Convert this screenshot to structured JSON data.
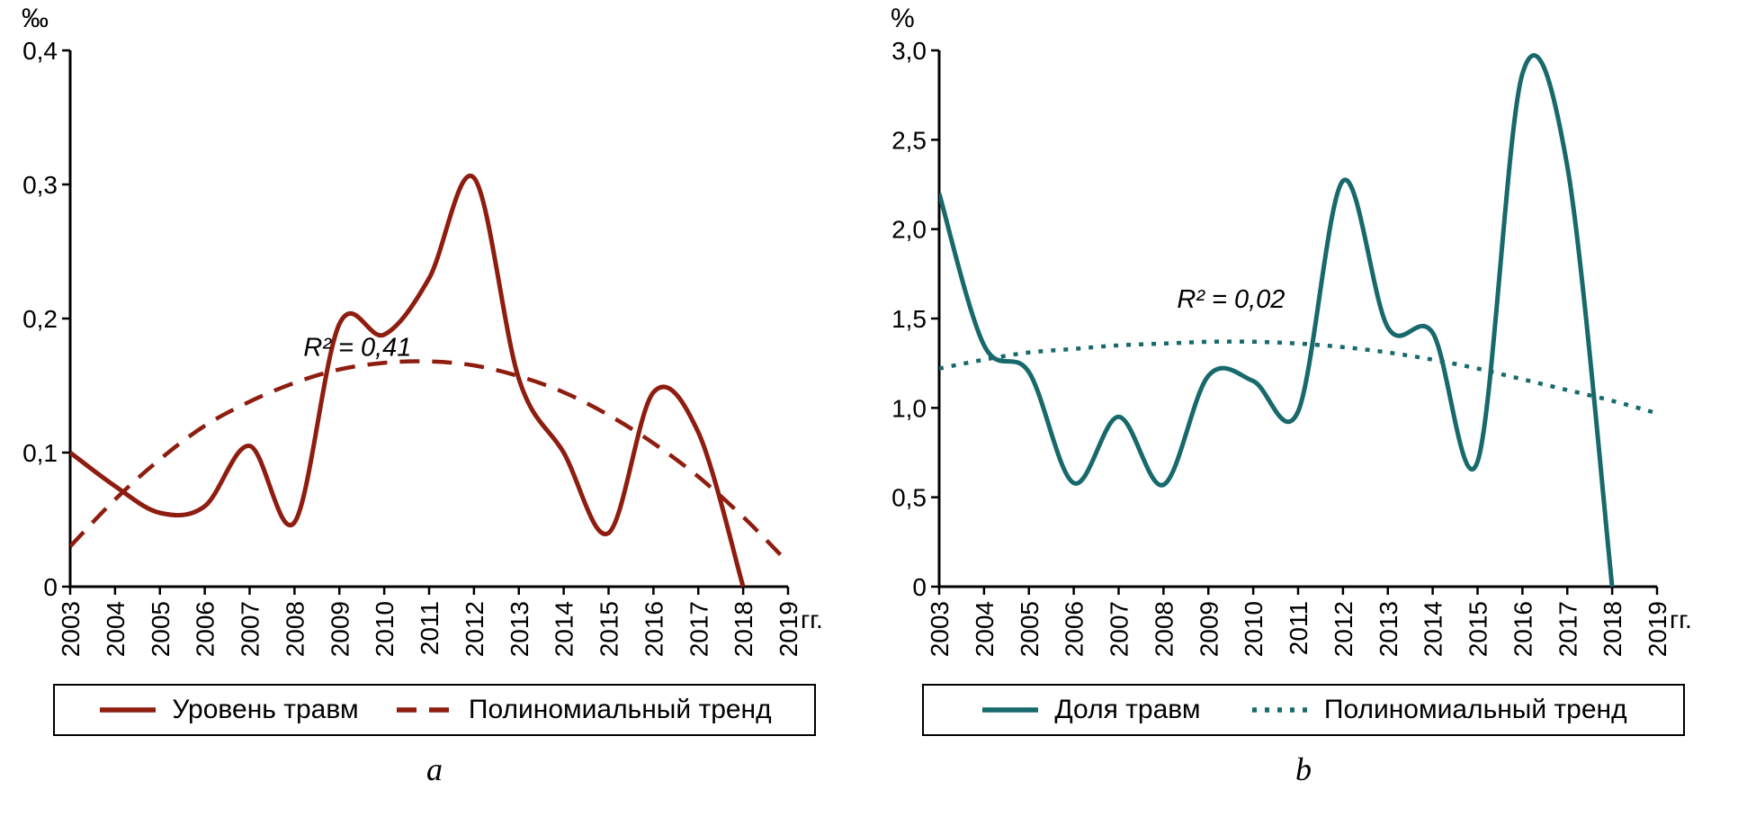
{
  "chart_data": [
    {
      "type": "line",
      "caption": "a",
      "unit": "‰",
      "x_suffix": "гг.",
      "color": "#8e1d10",
      "ylim": [
        0,
        0.4
      ],
      "yticks": [
        {
          "v": 0,
          "label": "0"
        },
        {
          "v": 0.1,
          "label": "0,1"
        },
        {
          "v": 0.2,
          "label": "0,2"
        },
        {
          "v": 0.3,
          "label": "0,3"
        },
        {
          "v": 0.4,
          "label": "0,4"
        }
      ],
      "x": [
        2003,
        2004,
        2005,
        2006,
        2007,
        2008,
        2009,
        2010,
        2011,
        2012,
        2013,
        2014,
        2015,
        2016,
        2017,
        2018,
        2019
      ],
      "r2": {
        "text": "R² = 0,41",
        "x": 2008.2,
        "y": 0.172
      },
      "series": [
        {
          "name": "Уровень травм",
          "dash": "none",
          "width": 5,
          "values": [
            0.1,
            0.075,
            0.055,
            0.06,
            0.105,
            0.048,
            0.196,
            0.188,
            0.23,
            0.305,
            0.155,
            0.1,
            0.04,
            0.145,
            0.115,
            0.0,
            null
          ]
        },
        {
          "name": "Полиномиальный тренд",
          "dash": "22 14",
          "width": 4.5,
          "values": [
            0.03,
            0.065,
            0.095,
            0.12,
            0.138,
            0.152,
            0.162,
            0.167,
            0.168,
            0.165,
            0.157,
            0.145,
            0.128,
            0.107,
            0.082,
            0.052,
            0.018
          ]
        }
      ]
    },
    {
      "type": "line",
      "caption": "b",
      "unit": "%",
      "x_suffix": "гг.",
      "color": "#17696c",
      "ylim": [
        0,
        3.0
      ],
      "yticks": [
        {
          "v": 0,
          "label": "0"
        },
        {
          "v": 0.5,
          "label": "0,5"
        },
        {
          "v": 1.0,
          "label": "1,0"
        },
        {
          "v": 1.5,
          "label": "1,5"
        },
        {
          "v": 2.0,
          "label": "2,0"
        },
        {
          "v": 2.5,
          "label": "2,5"
        },
        {
          "v": 3.0,
          "label": "3,0"
        }
      ],
      "x": [
        2003,
        2004,
        2005,
        2006,
        2007,
        2008,
        2009,
        2010,
        2011,
        2012,
        2013,
        2014,
        2015,
        2016,
        2017,
        2018,
        2019
      ],
      "r2": {
        "text": "R² = 0,02",
        "x": 2008.3,
        "y": 1.56
      },
      "series": [
        {
          "name": "Доля травм",
          "dash": "none",
          "width": 5,
          "values": [
            2.2,
            1.35,
            1.2,
            0.58,
            0.95,
            0.57,
            1.18,
            1.15,
            0.98,
            2.27,
            1.45,
            1.42,
            0.7,
            2.87,
            2.35,
            0.0,
            null
          ]
        },
        {
          "name": "Полиномиальный тренд",
          "dash": "5 9",
          "width": 4.5,
          "values": [
            1.22,
            1.27,
            1.31,
            1.33,
            1.35,
            1.36,
            1.37,
            1.37,
            1.36,
            1.34,
            1.31,
            1.27,
            1.22,
            1.16,
            1.1,
            1.04,
            0.97
          ]
        }
      ]
    }
  ]
}
